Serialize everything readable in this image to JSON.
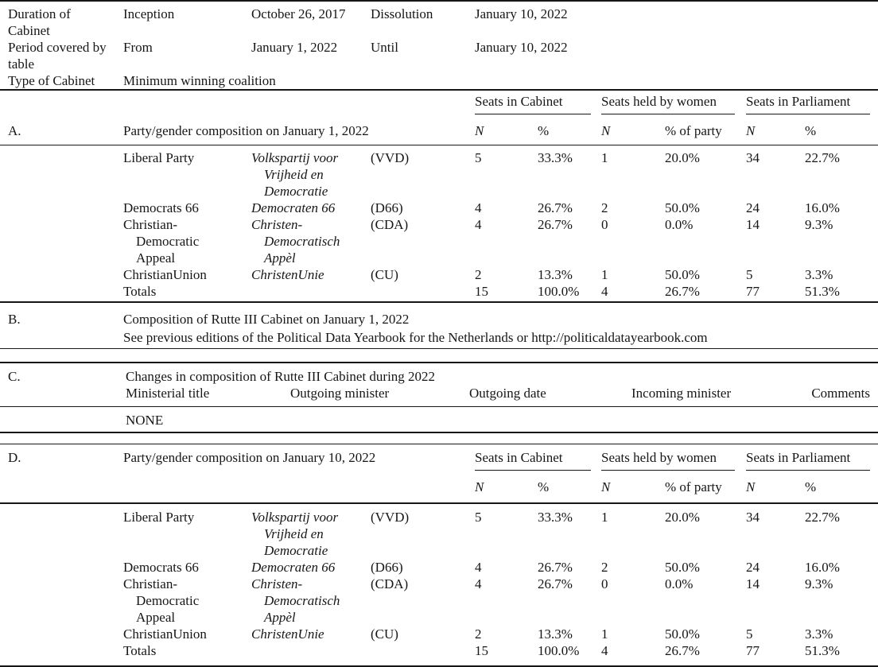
{
  "meta_rows": [
    {
      "label": "Duration of\nCabinet",
      "key1": "Inception",
      "val1": "October 26, 2017",
      "key2": "Dissolution",
      "val2": "January 10, 2022"
    },
    {
      "label": "Period covered by\ntable",
      "key1": "From",
      "val1": "January 1, 2022",
      "key2": "Until",
      "val2": "January 10, 2022"
    },
    {
      "label": "Type of Cabinet",
      "key1": "Minimum winning coalition"
    }
  ],
  "column_groups": {
    "cabinet": "Seats in Cabinet",
    "women": "Seats held by women",
    "parliament": "Seats in Parliament"
  },
  "subheaders": {
    "n": "N",
    "pct": "%",
    "pct_of_party": "% of party"
  },
  "section_a": {
    "letter": "A.",
    "caption": "Party/gender composition on January 1, 2022",
    "rows": [
      {
        "party": "Liberal Party",
        "dutch": "Volkspartij voor\nVrijheid en\nDemocratie",
        "abbr": "(VVD)",
        "n_cabinet": "5",
        "pct_cabinet": "33.3%",
        "n_women": "1",
        "pct_of_party": "20.0%",
        "n_parliament": "34",
        "pct_parliament": "22.7%"
      },
      {
        "party": "Democrats 66",
        "dutch": "Democraten 66",
        "abbr": "(D66)",
        "n_cabinet": "4",
        "pct_cabinet": "26.7%",
        "n_women": "2",
        "pct_of_party": "50.0%",
        "n_parliament": "24",
        "pct_parliament": "16.0%"
      },
      {
        "party": "Christian-\nDemocratic\nAppeal",
        "dutch": "Christen-\nDemocratisch\nAppèl",
        "abbr": "(CDA)",
        "n_cabinet": "4",
        "pct_cabinet": "26.7%",
        "n_women": "0",
        "pct_of_party": "0.0%",
        "n_parliament": "14",
        "pct_parliament": "9.3%"
      },
      {
        "party": "ChristianUnion",
        "dutch": "ChristenUnie",
        "abbr": "(CU)",
        "n_cabinet": "2",
        "pct_cabinet": "13.3%",
        "n_women": "1",
        "pct_of_party": "50.0%",
        "n_parliament": "5",
        "pct_parliament": "3.3%"
      }
    ],
    "totals": {
      "label": "Totals",
      "n_cabinet": "15",
      "pct_cabinet": "100.0%",
      "n_women": "4",
      "pct_of_party": "26.7%",
      "n_parliament": "77",
      "pct_parliament": "51.3%"
    }
  },
  "section_b": {
    "letter": "B.",
    "line1": "Composition of Rutte III Cabinet on January 1, 2022",
    "line2": "See previous editions of the Political Data Yearbook for the Netherlands or http://politicaldatayearbook.com"
  },
  "section_c": {
    "letter": "C.",
    "caption": "Changes in composition of Rutte III Cabinet during 2022",
    "headers": {
      "ministerial_title": "Ministerial title",
      "outgoing_minister": "Outgoing minister",
      "outgoing_date": "Outgoing date",
      "incoming_minister": "Incoming minister",
      "comments": "Comments"
    },
    "value": "NONE"
  },
  "section_d": {
    "letter": "D.",
    "caption": "Party/gender composition on January 10, 2022",
    "rows": [
      {
        "party": "Liberal Party",
        "dutch": "Volkspartij voor\nVrijheid en\nDemocratie",
        "abbr": "(VVD)",
        "n_cabinet": "5",
        "pct_cabinet": "33.3%",
        "n_women": "1",
        "pct_of_party": "20.0%",
        "n_parliament": "34",
        "pct_parliament": "22.7%"
      },
      {
        "party": "Democrats 66",
        "dutch": "Democraten 66",
        "abbr": "(D66)",
        "n_cabinet": "4",
        "pct_cabinet": "26.7%",
        "n_women": "2",
        "pct_of_party": "50.0%",
        "n_parliament": "24",
        "pct_parliament": "16.0%"
      },
      {
        "party": "Christian-\nDemocratic\nAppeal",
        "dutch": "Christen-\nDemocratisch\nAppèl",
        "abbr": "(CDA)",
        "n_cabinet": "4",
        "pct_cabinet": "26.7%",
        "n_women": "0",
        "pct_of_party": "0.0%",
        "n_parliament": "14",
        "pct_parliament": "9.3%"
      },
      {
        "party": "ChristianUnion",
        "dutch": "ChristenUnie",
        "abbr": "(CU)",
        "n_cabinet": "2",
        "pct_cabinet": "13.3%",
        "n_women": "1",
        "pct_of_party": "50.0%",
        "n_parliament": "5",
        "pct_parliament": "3.3%"
      }
    ],
    "totals": {
      "label": "Totals",
      "n_cabinet": "15",
      "pct_cabinet": "100.0%",
      "n_women": "4",
      "pct_of_party": "26.7%",
      "n_parliament": "77",
      "pct_parliament": "51.3%"
    }
  }
}
